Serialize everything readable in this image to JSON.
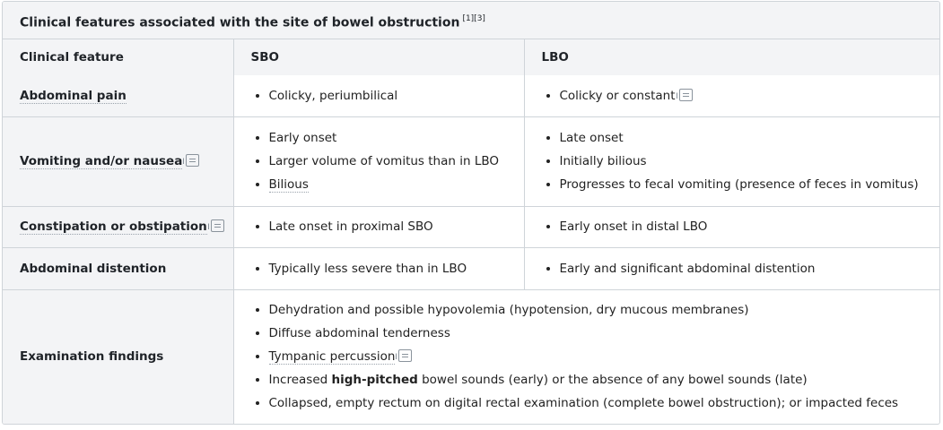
{
  "caption": {
    "title": "Clinical features associated with the site of bowel obstruction",
    "refs": "[1][3]"
  },
  "header": {
    "col1": "Clinical feature",
    "col2": "SBO",
    "col3": "LBO"
  },
  "rows": {
    "pain": {
      "label": "Abdominal pain",
      "sbo": [
        "Colicky, periumbilical"
      ],
      "lbo": [
        "Colicky or constant"
      ]
    },
    "vomiting": {
      "label": "Vomiting and/or nausea",
      "sbo": [
        "Early onset",
        "Larger volume of vomitus than in LBO",
        "Bilious"
      ],
      "lbo": [
        "Late onset",
        "Initially bilious",
        "Progresses to fecal vomiting (presence of feces in vomitus)"
      ]
    },
    "constipation": {
      "label": "Constipation or obstipation",
      "sbo": [
        "Late onset in proximal SBO"
      ],
      "lbo": [
        "Early onset in distal LBO"
      ]
    },
    "distention": {
      "label": "Abdominal distention",
      "sbo": [
        "Typically less severe than in LBO"
      ],
      "lbo": [
        "Early and significant abdominal distention"
      ]
    },
    "exam": {
      "label": "Examination findings",
      "items": [
        "Dehydration and possible hypovolemia (hypotension, dry mucous membranes)",
        "Diffuse abdominal tenderness",
        "Tympanic percussion"
      ],
      "item4_pre": "Increased",
      "item4_bold": "high-pitched",
      "item4_post": "bowel sounds (early) or the absence of any bowel sounds (late)",
      "item5": "Collapsed, empty rectum on digital rectal examination (complete bowel obstruction); or impacted feces"
    }
  },
  "icons": {
    "note": "note-icon"
  }
}
